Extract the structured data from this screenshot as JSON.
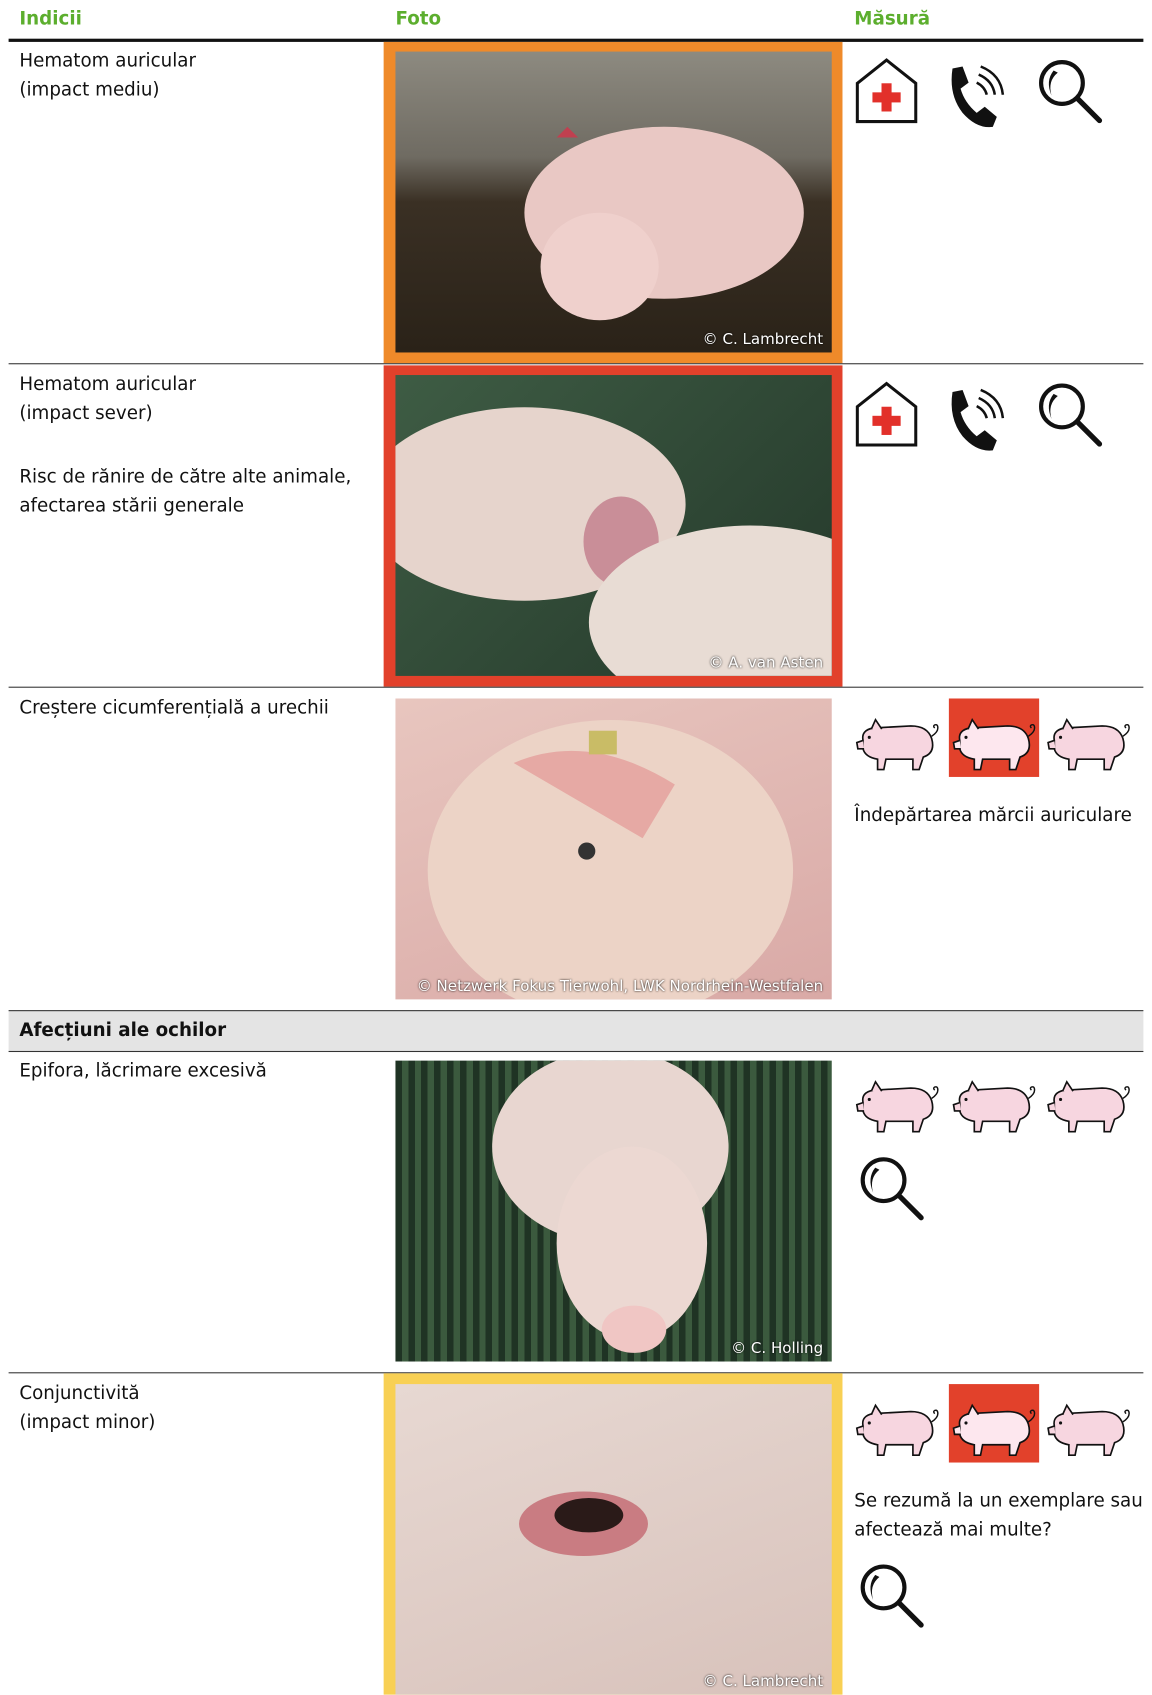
{
  "header": {
    "columns": [
      "Indicii",
      "Foto",
      "Măsură"
    ]
  },
  "rows": [
    {
      "indicator": [
        "Hematom auricular",
        "(impact mediu)"
      ],
      "photo_credit": "© C. Lambrecht"
    },
    {
      "indicator": [
        "Hematom auricular",
        "(impact sever)"
      ],
      "note": [
        "Risc de rănire de către alte animale,",
        "afectarea stării generale"
      ],
      "photo_credit": "© A. van Asten"
    },
    {
      "indicator": [
        "Creștere cicumferențială a urechii"
      ],
      "photo_credit": "© Netzwerk Fokus Tierwohl, LWK Nordrhein-Westfalen",
      "measure": [
        "Îndepărtarea mărcii auriculare"
      ]
    }
  ],
  "section": {
    "title": "Afecțiuni ale ochilor",
    "rows": [
      {
        "indicator": [
          "Epifora, lăcrimare excesivă"
        ],
        "photo_credit": "© C. Holling"
      },
      {
        "indicator": [
          "Conjunctivită",
          "(impact minor)"
        ],
        "photo_credit": "© C. Lambrecht",
        "measure": [
          "Se rezumă la un exemplare sau",
          "afectează mai multe?"
        ]
      }
    ]
  }
}
